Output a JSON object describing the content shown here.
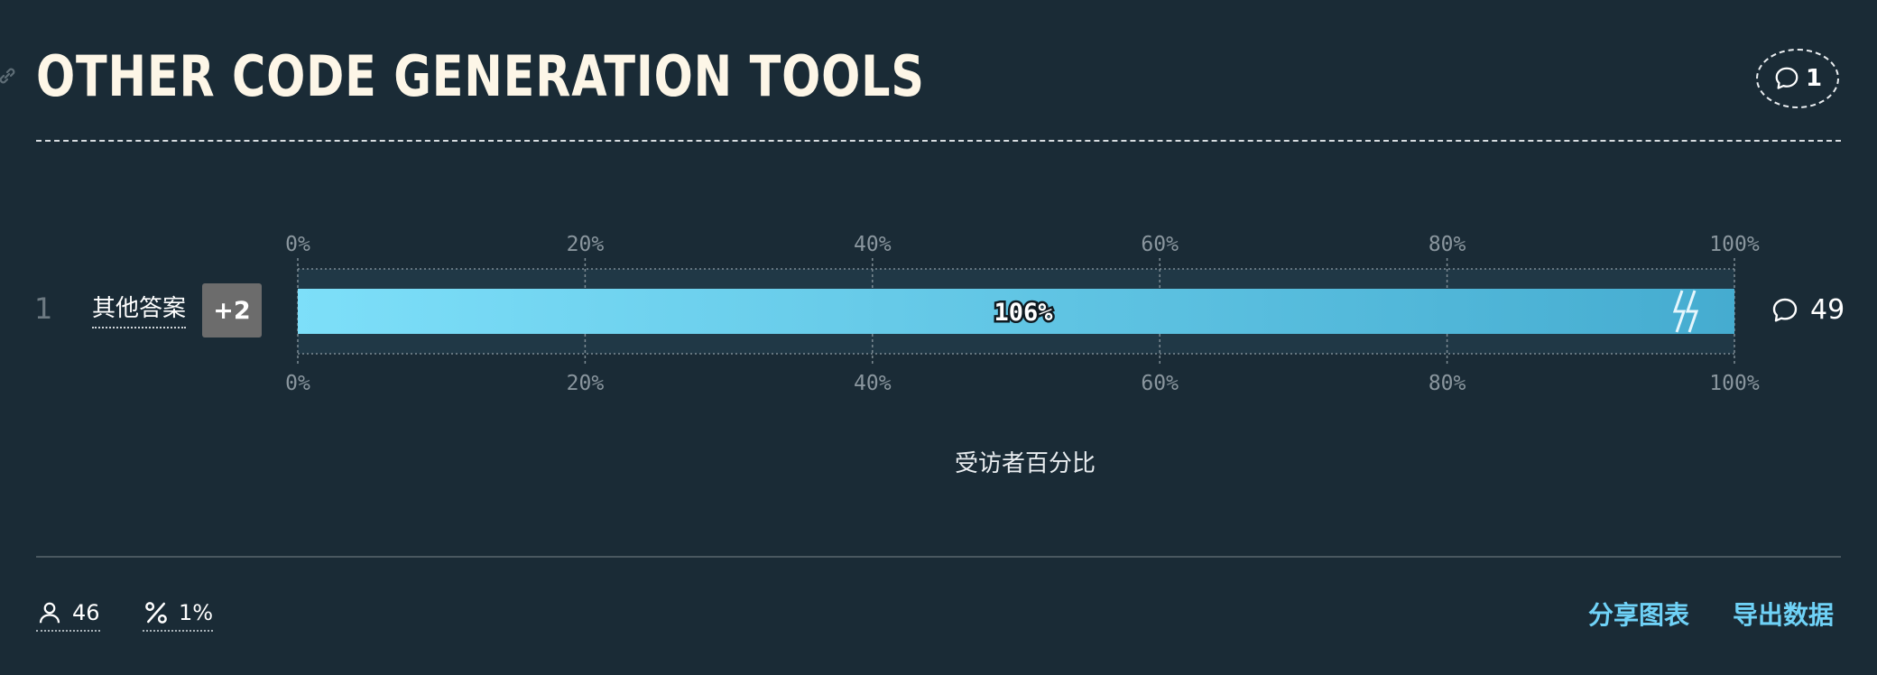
{
  "header": {
    "title": "OTHER CODE GENERATION TOOLS",
    "comment_count": "1"
  },
  "chart_data": {
    "type": "bar",
    "orientation": "horizontal",
    "x_axis_ticks": [
      "0%",
      "20%",
      "40%",
      "60%",
      "80%",
      "100%"
    ],
    "xlim": [
      0,
      100
    ],
    "xlabel": "受访者百分比",
    "categories": [
      "其他答案"
    ],
    "values": [
      106
    ],
    "value_labels": [
      "106%"
    ],
    "bar_capped_at_max": true,
    "grid": true,
    "colors": {
      "bar_start": "#7ddff9",
      "bar_end": "#45acd0"
    }
  },
  "row": {
    "rank": "1",
    "label": "其他答案",
    "extra_badge": "+2",
    "comment_count": "49"
  },
  "footer": {
    "respondents": "46",
    "percent": "1%",
    "share_label": "分享图表",
    "export_label": "导出数据"
  },
  "colors": {
    "background": "#1a2b36",
    "title": "#fdf6e7",
    "accent": "#6fd2f7"
  }
}
